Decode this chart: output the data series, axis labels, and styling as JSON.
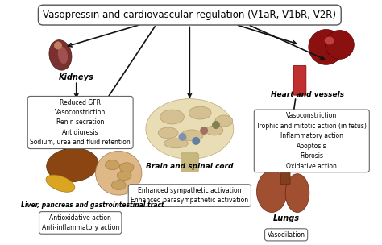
{
  "title": "Vasopressin and cardiovascular regulation (V1aR, V1bR, V2R)",
  "title_fontsize": 8.5,
  "bg_color": "#ffffff",
  "kidneys_label": "Kidneys",
  "brain_label": "Brain and spinal cord",
  "heart_label": "Heart and vessels",
  "liver_label": "Liver, pancreas and gastrointestinal tract",
  "lungs_label": "Lungs",
  "kidney_box_text": "Reduced GFR\nVasoconstriction\nRenin secretion\nAntidiuresis\nSodium, urea and fluid retention",
  "brain_box_text": "Enhanced sympathetic activation\nEnhanced parasympathetic activation",
  "heart_box_text": "Vasoconstriction\nTrophic and mitotic action (in fetus)\nInflammatory action\nApoptosis\nFibrosis\nOxidative action",
  "liver_box_text": "Antioxidative action\nAnti-inflammatory action",
  "lungs_box_text": "Vasodilation"
}
